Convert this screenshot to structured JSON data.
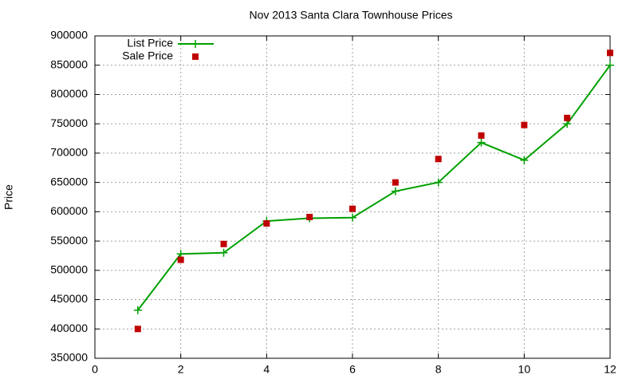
{
  "chart_data": {
    "type": "line",
    "title": "Nov 2013 Santa Clara Townhouse Prices",
    "y_label": "Price",
    "x": [
      1,
      2,
      3,
      4,
      5,
      6,
      7,
      8,
      9,
      10,
      11,
      12
    ],
    "series": [
      {
        "name": "List Price",
        "color": "#00a000",
        "style": "linespoints",
        "marker": "plus",
        "values": [
          432000,
          528000,
          530000,
          584000,
          589000,
          590000,
          635000,
          650000,
          718000,
          688000,
          750000,
          850000
        ]
      },
      {
        "name": "Sale Price",
        "color": "#c00000",
        "style": "points",
        "marker": "square",
        "values": [
          400000,
          518000,
          545000,
          580000,
          591000,
          605000,
          650000,
          690000,
          730000,
          748000,
          760000,
          871000
        ]
      }
    ],
    "xlim": [
      0,
      12
    ],
    "xticks": [
      0,
      2,
      4,
      6,
      8,
      10,
      12
    ],
    "ylim": [
      350000,
      900000
    ],
    "yticks": [
      350000,
      400000,
      450000,
      500000,
      550000,
      600000,
      650000,
      700000,
      750000,
      800000,
      850000,
      900000
    ],
    "grid": true,
    "legend": "top-left"
  }
}
